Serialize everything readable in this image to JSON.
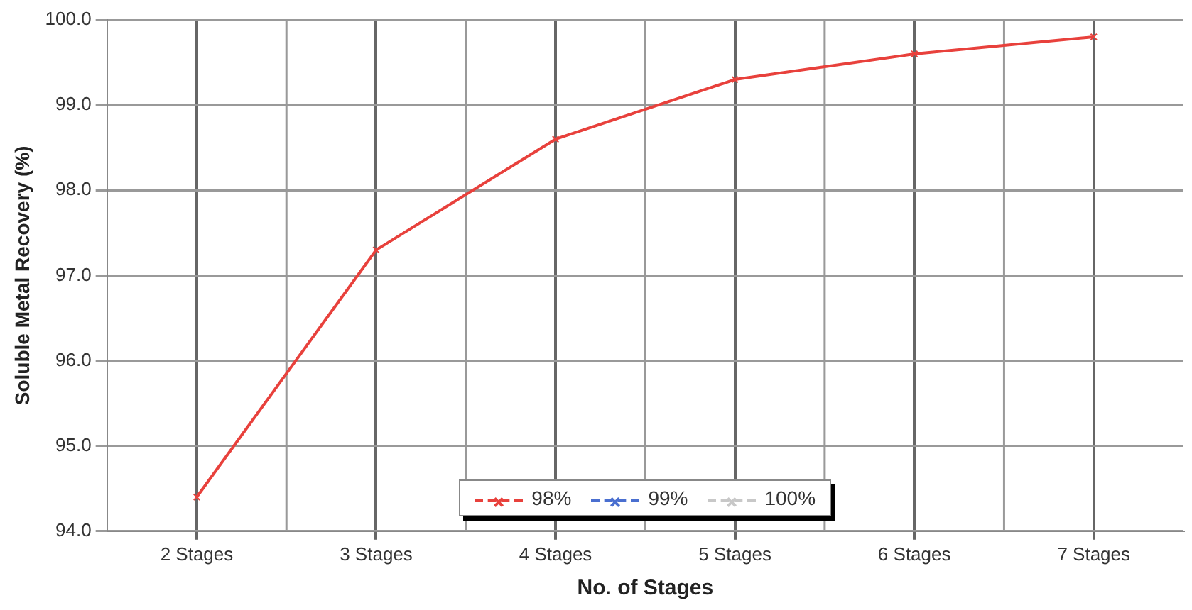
{
  "chart_data": {
    "type": "line",
    "xlabel": "No. of Stages",
    "ylabel": "Soluble Metal Recovery (%)",
    "categories": [
      "2 Stages",
      "3 Stages",
      "4 Stages",
      "5 Stages",
      "6 Stages",
      "7 Stages"
    ],
    "series": [
      {
        "name": "98%",
        "color": "#e8413c",
        "values": [
          94.4,
          97.3,
          98.6,
          99.3,
          99.6,
          99.8
        ]
      },
      {
        "name": "99%",
        "color": "#4a6fd0",
        "values": [
          null,
          null,
          null,
          null,
          null,
          null
        ]
      },
      {
        "name": "100%",
        "color": "#c8c8c8",
        "values": [
          null,
          null,
          null,
          null,
          null,
          null
        ]
      }
    ],
    "ylim": [
      94,
      100
    ],
    "yticks": [
      {
        "value": 94,
        "label": "94.0"
      },
      {
        "value": 95,
        "label": "95.0"
      },
      {
        "value": 96,
        "label": "96.0"
      },
      {
        "value": 97,
        "label": "97.0"
      },
      {
        "value": 98,
        "label": "98.0"
      },
      {
        "value": 99,
        "label": "99.0"
      },
      {
        "value": 100,
        "label": "100.0"
      }
    ],
    "grid": true,
    "legend": "bottom",
    "marker": "cross",
    "line_style": "solid"
  }
}
